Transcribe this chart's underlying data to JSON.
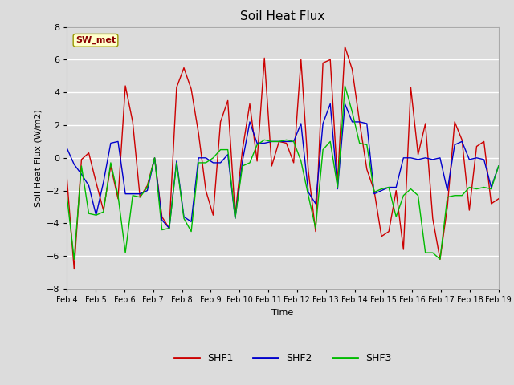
{
  "title": "Soil Heat Flux",
  "ylabel": "Soil Heat Flux (W/m2)",
  "xlabel": "Time",
  "ylim": [
    -8,
    8
  ],
  "annotation_text": "SW_met",
  "plot_bg_color": "#dcdcdc",
  "fig_bg_color": "#dcdcdc",
  "grid_color": "#ffffff",
  "shf1_color": "#cc0000",
  "shf2_color": "#0000cc",
  "shf3_color": "#00bb00",
  "x_labels": [
    "Feb 4",
    "Feb 5",
    "Feb 6",
    "Feb 7",
    "Feb 8",
    "Feb 9",
    "Feb 10",
    "Feb 11",
    "Feb 12",
    "Feb 13",
    "Feb 14",
    "Feb 15",
    "Feb 16",
    "Feb 17",
    "Feb 18",
    "Feb 19"
  ],
  "shf1": [
    -1.2,
    -6.8,
    -0.1,
    0.3,
    -1.5,
    -3.2,
    -0.5,
    -2.5,
    4.4,
    2.2,
    -2.4,
    -1.7,
    0.0,
    -3.6,
    -4.3,
    4.3,
    5.5,
    4.2,
    1.5,
    -2.0,
    -3.5,
    2.2,
    3.5,
    -3.5,
    0.5,
    3.3,
    -0.2,
    6.1,
    -0.5,
    1.0,
    0.9,
    -0.3,
    6.0,
    -0.8,
    -4.5,
    5.8,
    6.0,
    -1.5,
    6.8,
    5.4,
    2.2,
    -0.7,
    -2.0,
    -4.8,
    -4.5,
    -2.0,
    -5.6,
    4.3,
    0.2,
    2.1,
    -3.7,
    -6.2,
    -3.0,
    2.2,
    1.1,
    -3.2,
    0.7,
    1.0,
    -2.8,
    -2.5
  ],
  "shf2": [
    0.6,
    -0.4,
    -1.0,
    -1.7,
    -3.5,
    -1.5,
    0.9,
    1.0,
    -2.2,
    -2.2,
    -2.2,
    -2.0,
    0.0,
    -3.8,
    -4.3,
    -0.2,
    -3.6,
    -3.9,
    0.0,
    0.0,
    -0.3,
    -0.3,
    0.2,
    -3.7,
    -0.2,
    2.2,
    0.9,
    0.9,
    1.0,
    1.0,
    1.0,
    1.0,
    2.1,
    -2.1,
    -2.8,
    2.1,
    3.3,
    -1.9,
    3.3,
    2.2,
    2.2,
    2.1,
    -2.2,
    -2.0,
    -1.8,
    -1.8,
    0.0,
    0.0,
    -0.1,
    0.0,
    -0.1,
    0.0,
    -2.0,
    0.8,
    1.0,
    -0.1,
    0.0,
    -0.1,
    -1.8,
    -0.5
  ],
  "shf3": [
    -2.3,
    -6.2,
    -0.5,
    -3.4,
    -3.5,
    -3.3,
    -0.3,
    -2.3,
    -5.8,
    -2.3,
    -2.4,
    -1.8,
    0.0,
    -4.4,
    -4.3,
    -0.3,
    -3.7,
    -4.5,
    -0.3,
    -0.3,
    0.0,
    0.5,
    0.5,
    -3.7,
    -0.5,
    -0.3,
    0.8,
    1.1,
    1.0,
    1.0,
    1.1,
    1.0,
    -0.2,
    -2.3,
    -4.3,
    0.5,
    1.0,
    -1.8,
    4.4,
    2.8,
    0.9,
    0.8,
    -2.1,
    -1.9,
    -1.8,
    -3.6,
    -2.3,
    -1.9,
    -2.3,
    -5.8,
    -5.8,
    -6.2,
    -2.4,
    -2.3,
    -2.3,
    -1.8,
    -1.9,
    -1.8,
    -1.9,
    -0.5
  ]
}
